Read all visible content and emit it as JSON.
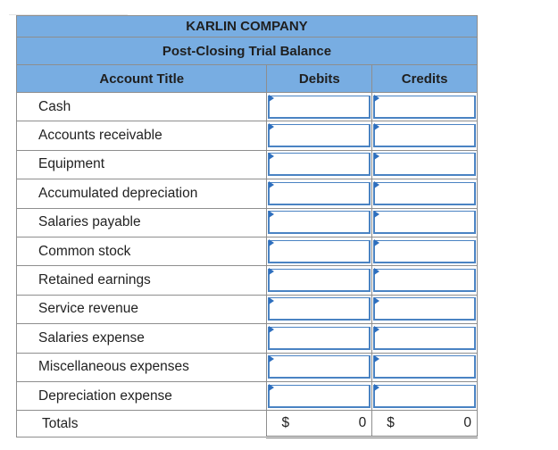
{
  "company": "KARLIN COMPANY",
  "statement": "Post-Closing Trial Balance",
  "columns": {
    "title": "Account Title",
    "debits": "Debits",
    "credits": "Credits"
  },
  "accounts": [
    "Cash",
    "Accounts receivable",
    "Equipment",
    "Accumulated depreciation",
    "Salaries payable",
    "Common stock",
    "Retained earnings",
    "Service revenue",
    "Salaries expense",
    "Miscellaneous expenses",
    "Depreciation expense"
  ],
  "totals": {
    "label": "Totals",
    "currency": "$",
    "debits": "0",
    "credits": "0"
  },
  "colors": {
    "header_bg": "#78ade2",
    "input_border": "#4a83c3",
    "flag": "#2e6fbe"
  }
}
